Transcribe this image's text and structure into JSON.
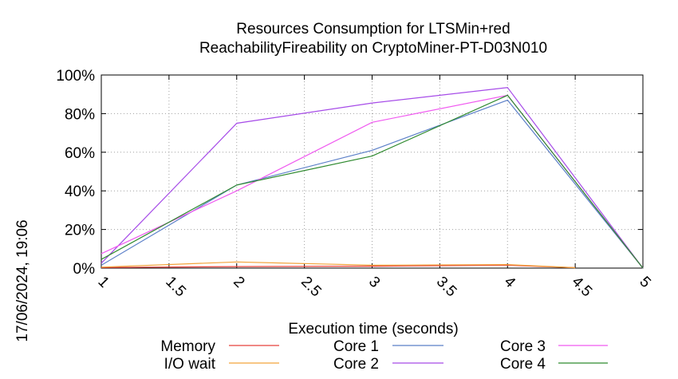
{
  "side_label": "17/06/2024, 19:06",
  "chart_data": {
    "type": "line",
    "title": [
      "Resources Consumption for LTSMin+red",
      "ReachabilityFireability on CryptoMiner-PT-D03N010"
    ],
    "xlabel": "Execution time (seconds)",
    "ylabel": "",
    "xlim": [
      1,
      5
    ],
    "ylim": [
      0,
      100
    ],
    "xticks": [
      1,
      1.5,
      2,
      2.5,
      3,
      3.5,
      4,
      4.5,
      5
    ],
    "xtick_labels": [
      "1",
      "1.5",
      "2",
      "2.5",
      "3",
      "3.5",
      "4",
      "4.5",
      "5"
    ],
    "yticks": [
      0,
      20,
      40,
      60,
      80,
      100
    ],
    "ytick_labels": [
      "0%",
      "20%",
      "40%",
      "60%",
      "80%",
      "100%"
    ],
    "grid": true,
    "legend_position": "bottom",
    "series": [
      {
        "name": "Memory",
        "color": "#e8413a",
        "x": [
          1,
          2,
          3,
          4,
          4.5
        ],
        "values": [
          0.3,
          0.8,
          1.0,
          1.5,
          0.2
        ]
      },
      {
        "name": "I/O wait",
        "color": "#f2a33a",
        "x": [
          1,
          2,
          3,
          4,
          4.5
        ],
        "values": [
          0.5,
          3.2,
          1.5,
          1.8,
          0.2
        ]
      },
      {
        "name": "Core 1",
        "color": "#5b7fc8",
        "x": [
          1,
          2,
          3,
          4,
          5
        ],
        "values": [
          1.5,
          43,
          61,
          87,
          0
        ]
      },
      {
        "name": "Core 2",
        "color": "#a64be8",
        "x": [
          1,
          2,
          3,
          4,
          5
        ],
        "values": [
          2.5,
          75,
          85.5,
          93.5,
          0
        ]
      },
      {
        "name": "Core 3",
        "color": "#f05af0",
        "x": [
          1,
          2,
          3,
          4,
          5
        ],
        "values": [
          7.5,
          40,
          75.5,
          89.5,
          0
        ]
      },
      {
        "name": "Core 4",
        "color": "#2f8a2f",
        "x": [
          1,
          2,
          3,
          4,
          5
        ],
        "values": [
          4.5,
          43,
          58,
          89.5,
          0
        ]
      }
    ]
  }
}
